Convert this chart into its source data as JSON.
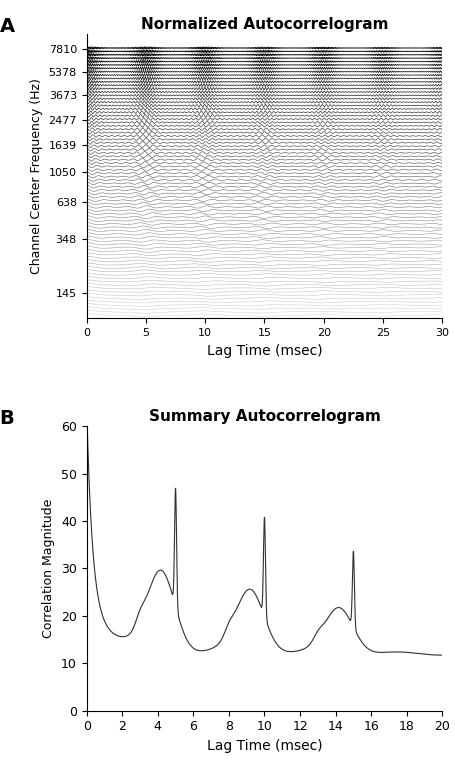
{
  "title_A": "Normalized Autocorrelogram",
  "title_B": "Summary Autocorrelogram",
  "label_A": "A",
  "label_B": "B",
  "xlabel": "Lag Time (msec)",
  "ylabel_A": "Channel Center Frequency (Hz)",
  "ylabel_B": "Correlation Magnitude",
  "yticks_A": [
    145,
    348,
    638,
    1050,
    1639,
    2477,
    3673,
    5378,
    7810
  ],
  "ytick_labels_A": [
    "145",
    "348",
    "638",
    "1050",
    "1639",
    "2477",
    "3673",
    "5378",
    "7810"
  ],
  "xlim_A": [
    0,
    30
  ],
  "xticks_A": [
    0,
    5,
    10,
    15,
    20,
    25,
    30
  ],
  "xlim_B": [
    0,
    20
  ],
  "xticks_B": [
    0,
    2,
    4,
    6,
    8,
    10,
    12,
    14,
    16,
    18,
    20
  ],
  "ylim_B": [
    0,
    60
  ],
  "yticks_B": [
    0,
    10,
    20,
    30,
    40,
    50,
    60
  ],
  "line_color_A": "#1a1a1a",
  "line_color_B": "#303030",
  "bg_color": "#ffffff",
  "num_channels": 80,
  "freq_min": 100,
  "freq_max": 8000,
  "pitch_period_ms": 5.0,
  "lag_max_A": 30,
  "lag_max_B": 20
}
